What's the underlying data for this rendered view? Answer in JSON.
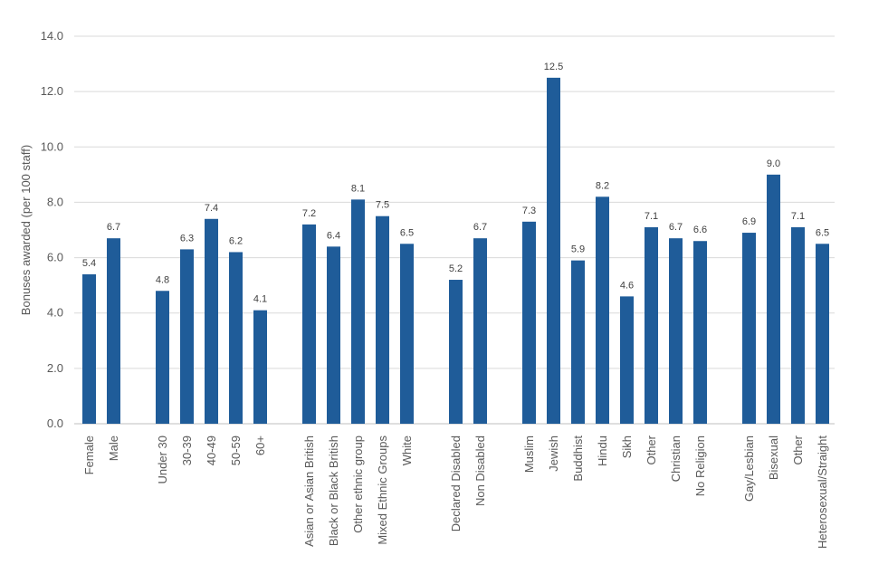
{
  "chart_data": {
    "type": "bar",
    "title": "",
    "xlabel": "",
    "ylabel": "Bonuses awarded (per 100 staff)",
    "ylim": [
      0,
      14
    ],
    "yticks": [
      "0.0",
      "2.0",
      "4.0",
      "6.0",
      "8.0",
      "10.0",
      "12.0",
      "14.0"
    ],
    "grid": true,
    "legend": "none",
    "bar_color": "#1f5c99",
    "categories": [
      "Female",
      "Male",
      "Under 30",
      "30-39",
      "40-49",
      "50-59",
      "60+",
      "Asian or Asian British",
      "Black or Black British",
      "Other ethnic group",
      "Mixed Ethnic Groups",
      "White",
      "Declared Disabled",
      "Non Disabled",
      "Muslim",
      "Jewish",
      "Buddhist",
      "Hindu",
      "Sikh",
      "Other",
      "Christian",
      "No Religion",
      "Gay/Lesbian",
      "Bisexual",
      "Other",
      "Heterosexual/Straight"
    ],
    "values": [
      5.4,
      6.7,
      4.8,
      6.3,
      7.4,
      6.2,
      4.1,
      7.2,
      6.4,
      8.1,
      7.5,
      6.5,
      5.2,
      6.7,
      7.3,
      12.5,
      5.9,
      8.2,
      4.6,
      7.1,
      6.7,
      6.6,
      6.9,
      9.0,
      7.1,
      6.5
    ],
    "value_labels": [
      "5.4",
      "6.7",
      "4.8",
      "6.3",
      "7.4",
      "6.2",
      "4.1",
      "7.2",
      "6.4",
      "8.1",
      "7.5",
      "6.5",
      "5.2",
      "6.7",
      "7.3",
      "12.5",
      "5.9",
      "8.2",
      "4.6",
      "7.1",
      "6.7",
      "6.6",
      "6.9",
      "9.0",
      "7.1",
      "6.5"
    ],
    "groups": [
      2,
      5,
      5,
      2,
      8,
      4
    ]
  }
}
